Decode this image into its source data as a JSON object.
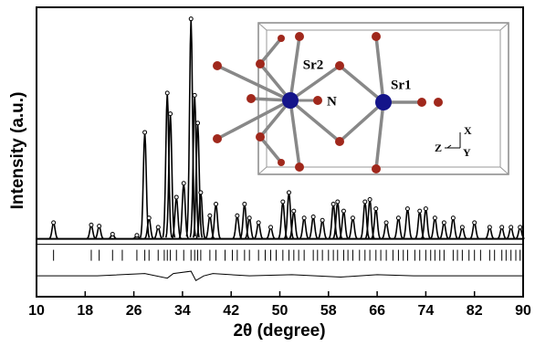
{
  "chart_data": {
    "type": "peaks",
    "x_label": "2θ (degree)",
    "y_label": "Intensity (a.u.)",
    "xlim": [
      10,
      90
    ],
    "xticks": [
      10,
      18,
      26,
      34,
      42,
      50,
      58,
      66,
      74,
      82,
      90
    ],
    "ylim": [
      -25,
      100
    ],
    "color": "#000000",
    "x": [
      12.8,
      19.0,
      20.3,
      22.5,
      26.5,
      27.8,
      28.5,
      30.0,
      31.5,
      32.0,
      33.0,
      34.2,
      35.4,
      36.0,
      36.5,
      37.0,
      38.5,
      39.5,
      43.0,
      44.2,
      45.0,
      46.5,
      48.5,
      50.5,
      51.5,
      52.3,
      54.0,
      55.5,
      57.0,
      58.8,
      59.5,
      60.5,
      62.0,
      64.0,
      64.8,
      65.8,
      67.5,
      69.5,
      71.0,
      73.0,
      74.0,
      75.5,
      77.0,
      78.5,
      80.0,
      82.0,
      84.5,
      86.5,
      88.0,
      89.5
    ],
    "values": [
      7,
      6,
      5.5,
      2,
      1.5,
      46,
      9,
      5,
      63,
      54,
      18,
      24,
      95,
      62,
      50,
      20,
      10,
      15,
      10,
      15,
      9,
      7,
      5,
      16,
      20,
      12,
      9,
      9.5,
      8,
      15,
      16,
      12,
      9,
      16,
      17,
      13,
      7,
      9,
      13,
      12,
      13,
      9,
      7,
      9,
      5,
      7,
      5,
      5,
      5,
      5
    ],
    "bragg_positions": [
      12.8,
      19.0,
      20.3,
      22.5,
      24.1,
      26.5,
      27.8,
      28.5,
      30.0,
      31.0,
      31.5,
      32.0,
      33.0,
      34.2,
      35.4,
      36.0,
      36.5,
      37.0,
      38.5,
      39.5,
      41.0,
      42.2,
      43.0,
      44.2,
      45.0,
      46.5,
      47.6,
      48.5,
      49.4,
      50.5,
      51.5,
      52.3,
      53.1,
      54.0,
      55.5,
      56.2,
      57.0,
      58.0,
      58.8,
      59.5,
      60.5,
      61.2,
      62.0,
      63.1,
      64.0,
      64.8,
      65.8,
      66.6,
      67.5,
      68.6,
      69.5,
      70.3,
      71.0,
      72.2,
      73.0,
      74.0,
      74.8,
      75.5,
      76.3,
      77.0,
      78.5,
      79.2,
      80.0,
      81.1,
      82.0,
      83.0,
      84.5,
      85.3,
      86.5,
      87.2,
      88.0,
      88.8,
      89.5
    ],
    "difference": {
      "x": [
        10,
        20,
        27.8,
        31.5,
        32.5,
        35.4,
        36.2,
        37.5,
        39,
        45,
        52,
        60,
        66,
        72,
        80,
        90
      ],
      "values": [
        -16,
        -16,
        -15,
        -17,
        -15,
        -14,
        -18,
        -16,
        -15,
        -16,
        -15.5,
        -16.5,
        -15.5,
        -16,
        -16,
        -16
      ]
    },
    "annotations": [
      "Sr2",
      "N",
      "Sr1",
      "X",
      "Y",
      "Z"
    ]
  }
}
